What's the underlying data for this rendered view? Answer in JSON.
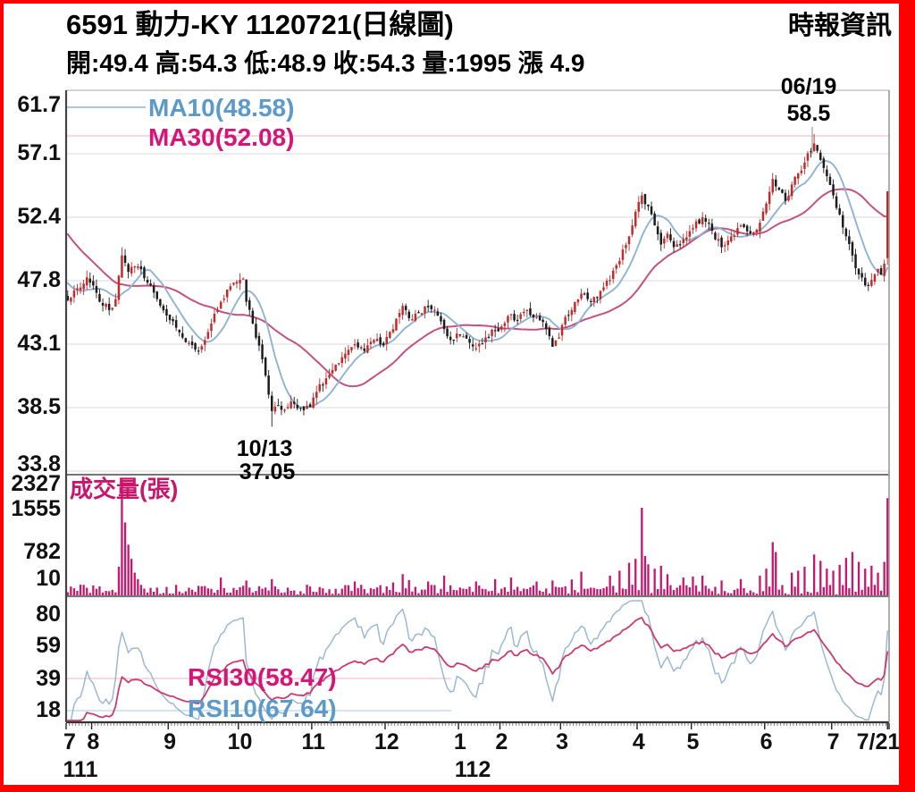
{
  "header": {
    "title": "6591  動力-KY 1120721(日線圖)",
    "source": "時報資訊",
    "quote": "開:49.4 高:54.3 低:48.9 收:54.3 量:1995 漲 4.9"
  },
  "colors": {
    "frame": "#ff0000",
    "up_candle": "#c32b2b",
    "down_candle": "#1c1c1c",
    "ma10_line": "#8fb3d2",
    "ma30_line": "#c4527f",
    "ma10_text": "#5b9ac9",
    "ma30_text": "#d61577",
    "volume_bar": "#c9156b",
    "rsi10_line": "#9cb8d2",
    "rsi30_line": "#cc3a6e",
    "grid": "#d9d9d9",
    "axis_dark": "#444444",
    "axis_mid": "#777777",
    "annotation": "#000000"
  },
  "chart_data": {
    "type": "candlestick",
    "title": "6591 動力-KY 1120721 daily chart",
    "panes": [
      "price",
      "volume",
      "rsi"
    ],
    "price_pane": {
      "ymax": 61.7,
      "ymin": 33.8,
      "ylabels": [
        "61.7",
        "57.1",
        "52.4",
        "47.8",
        "43.1",
        "38.5",
        "33.8"
      ],
      "ma10_label": "MA10(48.58)",
      "ma30_label": "MA30(52.08)",
      "ma10_value": 48.58,
      "ma30_value": 52.08,
      "high_annotation": {
        "date": "06/19",
        "value": "58.5",
        "day": 234
      },
      "low_annotation": {
        "date": "10/13",
        "value": "37.05",
        "day": 64
      }
    },
    "volume_pane": {
      "label": "成交量(張)",
      "ylabels": [
        "2327",
        "1555",
        "782",
        "10"
      ],
      "ymax": 2400,
      "last_volume": 1995
    },
    "rsi_pane": {
      "ylabels": [
        "80",
        "59",
        "39",
        "18"
      ],
      "rsi30_label": "RSI30(58.47)",
      "rsi10_label": "RSI10(67.64)",
      "rsi30_value": 58.47,
      "rsi10_value": 67.64
    },
    "xaxis": {
      "total_days": 258,
      "month_labels": [
        "7",
        "8",
        "9",
        "10",
        "11",
        "12",
        "1",
        "2",
        "3",
        "4",
        "5",
        "6",
        "7",
        "7/21"
      ],
      "month_days": [
        0,
        8,
        32,
        54,
        77,
        100,
        123,
        136,
        155,
        179,
        196,
        219,
        240,
        257.5
      ],
      "year_labels": [
        {
          "text": "111",
          "day": 0
        },
        {
          "text": "112",
          "day": 123
        }
      ]
    },
    "last_quote": {
      "open": 49.4,
      "high": 54.3,
      "low": 48.9,
      "close": 54.3,
      "volume": 1995,
      "change": 4.9
    },
    "history_keyframes": [
      [
        -30,
        56.0
      ],
      [
        -22,
        54.0
      ],
      [
        -14,
        51.0
      ],
      [
        -7,
        48.3
      ],
      [
        -1,
        46.6
      ]
    ],
    "price_keyframes": [
      [
        0,
        46.3
      ],
      [
        3,
        47.2
      ],
      [
        6,
        48.0
      ],
      [
        8,
        47.4
      ],
      [
        10,
        46.2
      ],
      [
        13,
        45.6
      ],
      [
        15,
        46.4
      ],
      [
        17,
        49.6
      ],
      [
        19,
        48.4
      ],
      [
        22,
        48.8
      ],
      [
        25,
        47.6
      ],
      [
        28,
        46.4
      ],
      [
        31,
        45.2
      ],
      [
        34,
        44.3
      ],
      [
        38,
        43.2
      ],
      [
        41,
        42.6
      ],
      [
        44,
        44.0
      ],
      [
        48,
        46.2
      ],
      [
        52,
        47.6
      ],
      [
        55,
        47.9
      ],
      [
        56,
        46.2
      ],
      [
        58,
        44.6
      ],
      [
        60,
        43.0
      ],
      [
        62,
        40.8
      ],
      [
        63,
        39.4
      ],
      [
        64,
        38.2
      ],
      [
        66,
        38.6
      ],
      [
        68,
        38.3
      ],
      [
        70,
        38.9
      ],
      [
        72,
        38.4
      ],
      [
        76,
        38.5
      ],
      [
        78,
        39.6
      ],
      [
        81,
        40.6
      ],
      [
        84,
        41.6
      ],
      [
        87,
        42.4
      ],
      [
        90,
        43.1
      ],
      [
        93,
        42.6
      ],
      [
        96,
        43.4
      ],
      [
        99,
        43.0
      ],
      [
        102,
        44.2
      ],
      [
        105,
        45.9
      ],
      [
        107,
        45.0
      ],
      [
        110,
        45.4
      ],
      [
        113,
        45.8
      ],
      [
        116,
        45.2
      ],
      [
        118,
        44.2
      ],
      [
        120,
        43.4
      ],
      [
        123,
        43.8
      ],
      [
        126,
        43.2
      ],
      [
        128,
        42.8
      ],
      [
        131,
        43.6
      ],
      [
        134,
        44.1
      ],
      [
        136,
        44.4
      ],
      [
        139,
        45.3
      ],
      [
        141,
        44.8
      ],
      [
        144,
        45.6
      ],
      [
        147,
        45.1
      ],
      [
        150,
        44.2
      ],
      [
        152,
        42.9
      ],
      [
        154,
        43.6
      ],
      [
        155,
        44.5
      ],
      [
        158,
        45.6
      ],
      [
        161,
        46.8
      ],
      [
        164,
        46.2
      ],
      [
        167,
        47.0
      ],
      [
        170,
        47.8
      ],
      [
        173,
        49.2
      ],
      [
        176,
        51.0
      ],
      [
        178,
        52.8
      ],
      [
        180,
        54.0
      ],
      [
        182,
        53.2
      ],
      [
        184,
        51.8
      ],
      [
        186,
        50.4
      ],
      [
        188,
        51.2
      ],
      [
        190,
        50.2
      ],
      [
        193,
        50.8
      ],
      [
        196,
        51.6
      ],
      [
        199,
        52.4
      ],
      [
        202,
        51.4
      ],
      [
        205,
        50.2
      ],
      [
        208,
        51.0
      ],
      [
        211,
        51.8
      ],
      [
        214,
        51.2
      ],
      [
        217,
        52.0
      ],
      [
        219,
        53.4
      ],
      [
        221,
        55.2
      ],
      [
        223,
        54.4
      ],
      [
        225,
        53.6
      ],
      [
        227,
        54.8
      ],
      [
        229,
        55.6
      ],
      [
        231,
        56.4
      ],
      [
        234,
        57.8
      ],
      [
        236,
        56.6
      ],
      [
        238,
        55.4
      ],
      [
        240,
        54.0
      ],
      [
        242,
        52.6
      ],
      [
        244,
        51.0
      ],
      [
        246,
        49.6
      ],
      [
        248,
        48.2
      ],
      [
        250,
        47.4
      ],
      [
        252,
        47.8
      ],
      [
        254,
        48.6
      ],
      [
        255,
        48.2
      ],
      [
        256,
        49.0
      ],
      [
        257,
        54.3
      ]
    ],
    "special_days": {
      "17": {
        "h": 50.2
      },
      "64": {
        "l": 37.05
      },
      "234": {
        "h": 58.5
      },
      "257": {
        "o": 49.4,
        "h": 54.3,
        "l": 48.9,
        "c": 54.3
      }
    },
    "volume_spikes": {
      "16": 600,
      "17": 2327,
      "18": 1500,
      "19": 1050,
      "20": 760,
      "21": 480,
      "22": 350,
      "48": 380,
      "56": 320,
      "64": 350,
      "90": 300,
      "102": 280,
      "105": 450,
      "107": 330,
      "113": 300,
      "118": 420,
      "128": 300,
      "134": 350,
      "139": 380,
      "147": 300,
      "152": 320,
      "158": 340,
      "161": 500,
      "170": 420,
      "173": 520,
      "176": 680,
      "178": 760,
      "180": 1800,
      "181": 820,
      "182": 650,
      "184": 560,
      "186": 620,
      "188": 450,
      "193": 380,
      "196": 400,
      "199": 420,
      "205": 320,
      "211": 350,
      "217": 420,
      "219": 560,
      "221": 1100,
      "222": 900,
      "227": 480,
      "229": 520,
      "231": 600,
      "234": 850,
      "236": 720,
      "238": 560,
      "240": 520,
      "242": 640,
      "244": 780,
      "246": 900,
      "248": 700,
      "250": 560,
      "252": 620,
      "254": 480,
      "256": 700,
      "257": 1995
    }
  }
}
